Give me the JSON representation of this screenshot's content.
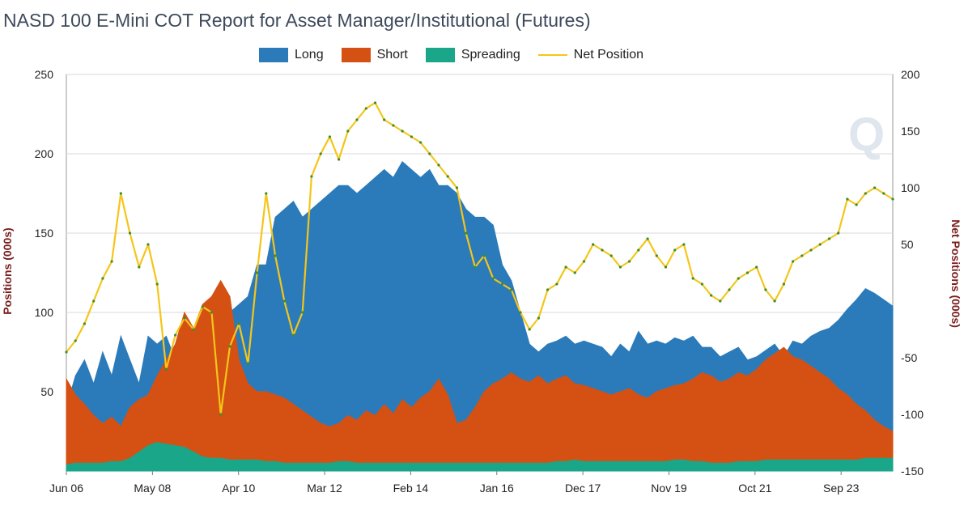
{
  "chart_data": {
    "type": "area",
    "title": "NASD 100 E-Mini COT Report for Asset Manager/Institutional (Futures)",
    "ylabel_left": "Positions (000s)",
    "ylabel_right": "Net Positions (000s)",
    "y_left": {
      "min": 0,
      "max": 250,
      "ticks": [
        50,
        100,
        150,
        200,
        250
      ]
    },
    "y_right": {
      "min": -150,
      "max": 200,
      "ticks": [
        -150,
        -100,
        -50,
        50,
        100,
        150,
        200
      ]
    },
    "x_ticks": [
      "Jun 06",
      "May 08",
      "Apr 10",
      "Mar 12",
      "Feb 14",
      "Jan 16",
      "Dec 17",
      "Nov 19",
      "Oct 21",
      "Sep 23"
    ],
    "grid": true,
    "legend_position": "top",
    "colors": {
      "long": "#2b7bba",
      "short": "#d45113",
      "spreading": "#1aa688",
      "net": "#f5c518",
      "net_marker": "#3a8f2f"
    },
    "series": [
      {
        "name": "Long",
        "values": [
          40,
          60,
          70,
          55,
          75,
          60,
          85,
          70,
          55,
          85,
          80,
          85,
          70,
          75,
          80,
          80,
          90,
          95,
          100,
          105,
          110,
          130,
          130,
          160,
          165,
          170,
          160,
          165,
          170,
          175,
          180,
          180,
          175,
          180,
          185,
          190,
          185,
          195,
          190,
          185,
          190,
          180,
          180,
          175,
          165,
          160,
          160,
          155,
          130,
          120,
          100,
          80,
          75,
          80,
          82,
          85,
          80,
          82,
          80,
          78,
          72,
          80,
          75,
          88,
          80,
          82,
          80,
          84,
          82,
          85,
          78,
          78,
          72,
          75,
          78,
          70,
          72,
          76,
          80,
          72,
          82,
          80,
          85,
          88,
          90,
          95,
          102,
          108,
          115,
          112,
          108,
          104
        ]
      },
      {
        "name": "Short",
        "values": [
          58,
          48,
          42,
          35,
          30,
          34,
          28,
          40,
          45,
          48,
          60,
          70,
          80,
          100,
          90,
          105,
          110,
          120,
          110,
          70,
          55,
          50,
          50,
          48,
          46,
          42,
          38,
          34,
          30,
          28,
          30,
          35,
          32,
          38,
          35,
          42,
          36,
          45,
          40,
          46,
          50,
          58,
          48,
          30,
          32,
          40,
          50,
          55,
          58,
          62,
          58,
          56,
          60,
          55,
          58,
          60,
          55,
          54,
          52,
          50,
          48,
          50,
          52,
          48,
          46,
          50,
          52,
          54,
          55,
          58,
          62,
          60,
          56,
          58,
          62,
          60,
          64,
          70,
          74,
          78,
          72,
          70,
          66,
          62,
          58,
          52,
          48,
          42,
          38,
          32,
          28,
          25
        ]
      },
      {
        "name": "Spreading",
        "values": [
          4,
          5,
          5,
          5,
          5,
          6,
          6,
          8,
          12,
          16,
          18,
          17,
          16,
          15,
          12,
          9,
          8,
          8,
          7,
          7,
          7,
          7,
          6,
          6,
          5,
          5,
          5,
          5,
          5,
          5,
          6,
          6,
          5,
          5,
          5,
          5,
          5,
          5,
          5,
          5,
          5,
          5,
          5,
          5,
          5,
          5,
          5,
          5,
          5,
          5,
          5,
          5,
          5,
          5,
          6,
          6,
          7,
          6,
          6,
          6,
          6,
          6,
          6,
          6,
          6,
          6,
          6,
          7,
          7,
          6,
          6,
          5,
          5,
          5,
          6,
          6,
          6,
          7,
          7,
          7,
          7,
          7,
          7,
          7,
          7,
          7,
          7,
          7,
          8,
          8,
          8,
          8
        ]
      },
      {
        "name": "Net Position",
        "values": [
          -45,
          -35,
          -20,
          0,
          20,
          35,
          95,
          60,
          30,
          50,
          15,
          -60,
          -30,
          -15,
          -25,
          -5,
          -10,
          -100,
          -40,
          -20,
          -55,
          25,
          95,
          40,
          0,
          -30,
          -10,
          110,
          130,
          145,
          125,
          150,
          160,
          170,
          175,
          160,
          155,
          150,
          145,
          140,
          130,
          120,
          110,
          100,
          60,
          30,
          40,
          20,
          15,
          10,
          -10,
          -25,
          -15,
          10,
          15,
          30,
          25,
          35,
          50,
          45,
          40,
          30,
          35,
          45,
          55,
          40,
          30,
          45,
          50,
          20,
          15,
          5,
          0,
          10,
          20,
          25,
          30,
          10,
          0,
          15,
          35,
          40,
          45,
          50,
          55,
          60,
          90,
          85,
          95,
          100,
          95,
          90
        ]
      }
    ]
  }
}
